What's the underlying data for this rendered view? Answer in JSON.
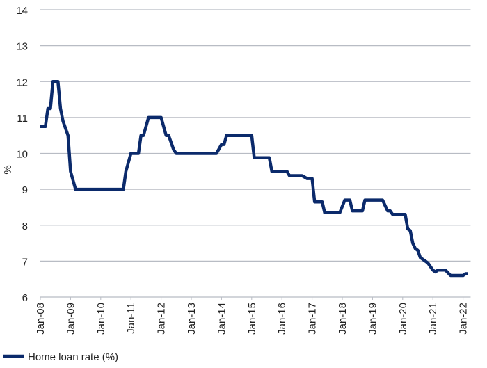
{
  "chart_data": {
    "type": "line",
    "y_label": "%",
    "x": [
      "2008-01",
      "2008-03",
      "2008-04",
      "2008-05",
      "2008-06",
      "2008-08",
      "2008-09",
      "2008-10",
      "2008-12",
      "2009-01",
      "2009-03",
      "2010-10",
      "2010-11",
      "2011-01",
      "2011-04",
      "2011-05",
      "2011-06",
      "2011-08",
      "2012-01",
      "2012-03",
      "2012-04",
      "2012-06",
      "2012-07",
      "2013-11",
      "2014-01",
      "2014-02",
      "2014-03",
      "2015-01",
      "2015-02",
      "2015-08",
      "2015-09",
      "2016-03",
      "2016-04",
      "2016-09",
      "2016-11",
      "2017-01",
      "2017-02",
      "2017-05",
      "2017-06",
      "2017-12",
      "2018-02",
      "2018-04",
      "2018-05",
      "2018-09",
      "2018-10",
      "2019-05",
      "2019-07",
      "2019-08",
      "2019-09",
      "2020-02",
      "2020-03",
      "2020-04",
      "2020-05",
      "2020-06",
      "2020-07",
      "2020-08",
      "2020-09",
      "2020-10",
      "2020-11",
      "2021-01",
      "2021-02",
      "2021-03",
      "2021-06",
      "2021-08",
      "2022-01",
      "2022-02",
      "2022-03"
    ],
    "series": [
      {
        "name": "Home loan rate (%)",
        "color": "#0b2a6b",
        "values": [
          10.75,
          10.75,
          11.25,
          11.25,
          12,
          12,
          11.25,
          10.9,
          10.5,
          9.5,
          9.0,
          9.0,
          9.5,
          10.0,
          10.0,
          10.5,
          10.5,
          11.0,
          11.0,
          10.5,
          10.5,
          10.1,
          10.0,
          10.0,
          10.25,
          10.25,
          10.5,
          10.5,
          9.88,
          9.88,
          9.5,
          9.5,
          9.38,
          9.38,
          9.3,
          9.3,
          8.65,
          8.65,
          8.35,
          8.35,
          8.7,
          8.7,
          8.4,
          8.4,
          8.7,
          8.7,
          8.4,
          8.4,
          8.3,
          8.3,
          7.9,
          7.85,
          7.5,
          7.35,
          7.3,
          7.1,
          7.05,
          7.0,
          6.95,
          6.75,
          6.7,
          6.75,
          6.75,
          6.6,
          6.6,
          6.65,
          6.65
        ]
      }
    ],
    "xlim": [
      "2008-01",
      "2022-04"
    ],
    "xticks": [
      {
        "value": "2008-01",
        "label": "Jan-08"
      },
      {
        "value": "2009-01",
        "label": "Jan-09"
      },
      {
        "value": "2010-01",
        "label": "Jan-10"
      },
      {
        "value": "2011-01",
        "label": "Jan-11"
      },
      {
        "value": "2012-01",
        "label": "Jan-12"
      },
      {
        "value": "2013-01",
        "label": "Jan-13"
      },
      {
        "value": "2014-01",
        "label": "Jan-14"
      },
      {
        "value": "2015-01",
        "label": "Jan-15"
      },
      {
        "value": "2016-01",
        "label": "Jan-16"
      },
      {
        "value": "2017-01",
        "label": "Jan-17"
      },
      {
        "value": "2018-01",
        "label": "Jan-18"
      },
      {
        "value": "2019-01",
        "label": "Jan-19"
      },
      {
        "value": "2020-01",
        "label": "Jan-20"
      },
      {
        "value": "2021-01",
        "label": "Jan-21"
      },
      {
        "value": "2022-01",
        "label": "Jan-22"
      }
    ],
    "ylim": [
      6,
      14
    ],
    "yticks": [
      6,
      7,
      8,
      9,
      10,
      11,
      12,
      13,
      14
    ],
    "grid": true,
    "legend": "bottom-left"
  }
}
